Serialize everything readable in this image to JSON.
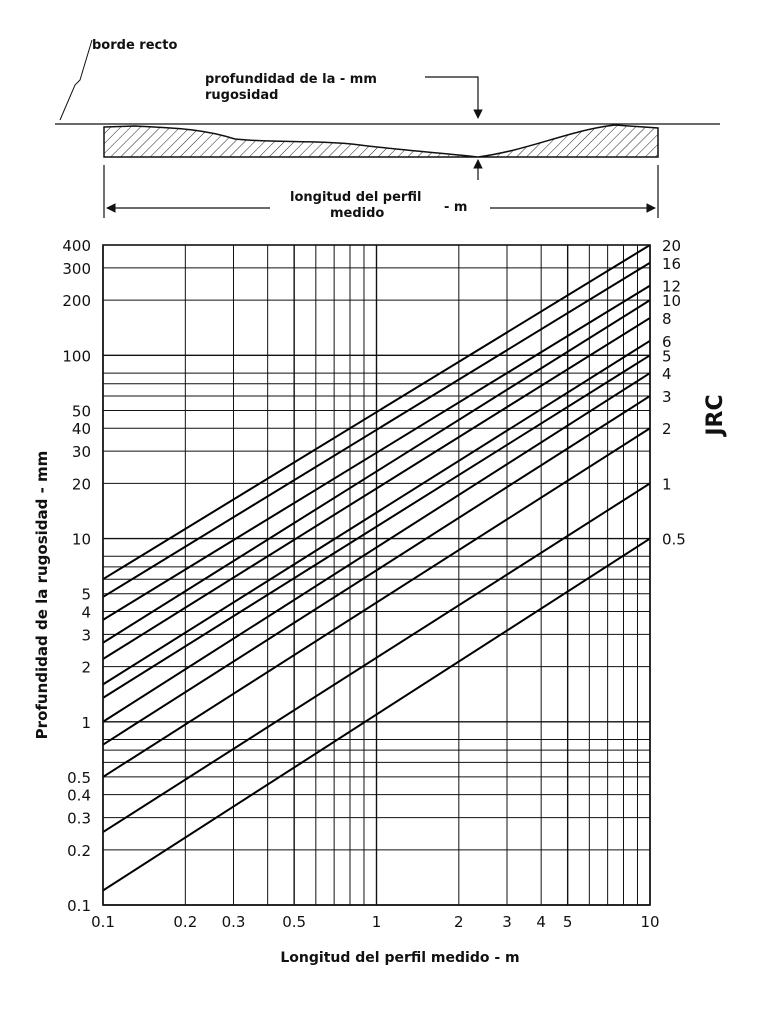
{
  "diagram": {
    "straight_edge_label": "borde recto",
    "depth_label_line1": "profundidad de la - mm",
    "depth_label_line2": "rugosidad",
    "length_label_line1": "longitud del perfil",
    "length_label_line2": "medido",
    "length_unit": "- m"
  },
  "chart_data": {
    "type": "line",
    "xscale": "log",
    "yscale": "log",
    "xlim": [
      0.1,
      10
    ],
    "ylim": [
      0.1,
      400
    ],
    "xlabel": "Longitud del perfil medido  -  m",
    "ylabel": "Profundidad de la rugosidad - mm",
    "right_axis_title": "JRC",
    "x_ticks": [
      {
        "v": 0.1,
        "label": "0.1"
      },
      {
        "v": 0.2,
        "label": "0.2"
      },
      {
        "v": 0.3,
        "label": "0.3"
      },
      {
        "v": 0.5,
        "label": "0.5"
      },
      {
        "v": 1,
        "label": "1"
      },
      {
        "v": 2,
        "label": "2"
      },
      {
        "v": 3,
        "label": "3"
      },
      {
        "v": 4,
        "label": "4"
      },
      {
        "v": 5,
        "label": "5"
      },
      {
        "v": 10,
        "label": "10"
      }
    ],
    "y_ticks": [
      {
        "v": 0.1,
        "label": "0.1"
      },
      {
        "v": 0.2,
        "label": "0.2"
      },
      {
        "v": 0.3,
        "label": "0.3"
      },
      {
        "v": 0.4,
        "label": "0.4"
      },
      {
        "v": 0.5,
        "label": "0.5"
      },
      {
        "v": 1,
        "label": "1"
      },
      {
        "v": 2,
        "label": "2"
      },
      {
        "v": 3,
        "label": "3"
      },
      {
        "v": 4,
        "label": "4"
      },
      {
        "v": 5,
        "label": "5"
      },
      {
        "v": 10,
        "label": "10"
      },
      {
        "v": 20,
        "label": "20"
      },
      {
        "v": 30,
        "label": "30"
      },
      {
        "v": 40,
        "label": "40"
      },
      {
        "v": 50,
        "label": "50"
      },
      {
        "v": 100,
        "label": "100"
      },
      {
        "v": 200,
        "label": "200"
      },
      {
        "v": 300,
        "label": "300"
      },
      {
        "v": 400,
        "label": "400"
      }
    ],
    "x_gridlines": [
      0.1,
      0.2,
      0.3,
      0.4,
      0.5,
      0.6,
      0.7,
      0.8,
      0.9,
      1,
      2,
      3,
      4,
      5,
      6,
      7,
      8,
      9,
      10
    ],
    "y_gridlines": [
      0.1,
      0.2,
      0.3,
      0.4,
      0.5,
      0.6,
      0.7,
      0.8,
      1,
      2,
      3,
      4,
      5,
      6,
      7,
      8,
      10,
      20,
      30,
      40,
      50,
      60,
      70,
      80,
      100,
      200,
      300,
      400
    ],
    "series": [
      {
        "label": "20",
        "points": [
          {
            "x": 0.1,
            "y": 6
          },
          {
            "x": 10,
            "y": 400
          }
        ]
      },
      {
        "label": "16",
        "points": [
          {
            "x": 0.1,
            "y": 4.8
          },
          {
            "x": 10,
            "y": 320
          }
        ]
      },
      {
        "label": "12",
        "points": [
          {
            "x": 0.1,
            "y": 3.6
          },
          {
            "x": 10,
            "y": 240
          }
        ]
      },
      {
        "label": "10",
        "points": [
          {
            "x": 0.1,
            "y": 2.7
          },
          {
            "x": 10,
            "y": 200
          }
        ]
      },
      {
        "label": "8",
        "points": [
          {
            "x": 0.1,
            "y": 2.2
          },
          {
            "x": 10,
            "y": 160
          }
        ]
      },
      {
        "label": "6",
        "points": [
          {
            "x": 0.1,
            "y": 1.6
          },
          {
            "x": 10,
            "y": 120
          }
        ]
      },
      {
        "label": "5",
        "points": [
          {
            "x": 0.1,
            "y": 1.35
          },
          {
            "x": 10,
            "y": 100
          }
        ]
      },
      {
        "label": "4",
        "points": [
          {
            "x": 0.1,
            "y": 1
          },
          {
            "x": 10,
            "y": 80
          }
        ]
      },
      {
        "label": "3",
        "points": [
          {
            "x": 0.1,
            "y": 0.75
          },
          {
            "x": 10,
            "y": 60
          }
        ]
      },
      {
        "label": "2",
        "points": [
          {
            "x": 0.1,
            "y": 0.5
          },
          {
            "x": 10,
            "y": 40
          }
        ]
      },
      {
        "label": "1",
        "points": [
          {
            "x": 0.1,
            "y": 0.25
          },
          {
            "x": 10,
            "y": 20
          }
        ]
      },
      {
        "label": "0.5",
        "points": [
          {
            "x": 0.1,
            "y": 0.12
          },
          {
            "x": 10,
            "y": 10
          }
        ]
      }
    ]
  }
}
